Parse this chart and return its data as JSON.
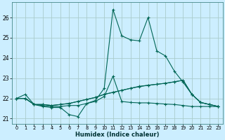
{
  "xlabel": "Humidex (Indice chaleur)",
  "bg_color": "#cceeff",
  "grid_color": "#aacccc",
  "line_color": "#006655",
  "xlim": [
    -0.5,
    23.5
  ],
  "ylim": [
    20.75,
    26.75
  ],
  "xticks": [
    0,
    1,
    2,
    3,
    4,
    5,
    6,
    7,
    8,
    9,
    10,
    11,
    12,
    13,
    14,
    15,
    16,
    17,
    18,
    19,
    20,
    21,
    22,
    23
  ],
  "yticks": [
    21,
    22,
    23,
    24,
    25,
    26
  ],
  "curves": [
    [
      22.0,
      22.2,
      21.7,
      21.6,
      21.55,
      21.55,
      21.2,
      21.1,
      21.75,
      21.9,
      22.5,
      26.4,
      25.1,
      24.9,
      24.85,
      26.0,
      24.35,
      24.1,
      23.35,
      22.8,
      22.2,
      21.8,
      21.7,
      21.6
    ],
    [
      22.0,
      22.0,
      21.7,
      21.65,
      21.6,
      21.6,
      21.65,
      21.65,
      21.75,
      21.85,
      22.1,
      23.1,
      21.85,
      21.8,
      21.78,
      21.78,
      21.75,
      21.72,
      21.7,
      21.65,
      21.6,
      21.6,
      21.6,
      21.6
    ],
    [
      22.0,
      22.0,
      21.7,
      21.7,
      21.65,
      21.7,
      21.75,
      21.85,
      21.95,
      22.05,
      22.2,
      22.3,
      22.4,
      22.5,
      22.6,
      22.65,
      22.7,
      22.75,
      22.82,
      22.9,
      22.2,
      21.8,
      21.7,
      21.6
    ],
    [
      22.0,
      22.0,
      21.7,
      21.7,
      21.65,
      21.7,
      21.75,
      21.85,
      21.95,
      22.05,
      22.2,
      22.3,
      22.4,
      22.5,
      22.58,
      22.65,
      22.7,
      22.75,
      22.82,
      22.9,
      22.2,
      21.8,
      21.7,
      21.6
    ]
  ]
}
